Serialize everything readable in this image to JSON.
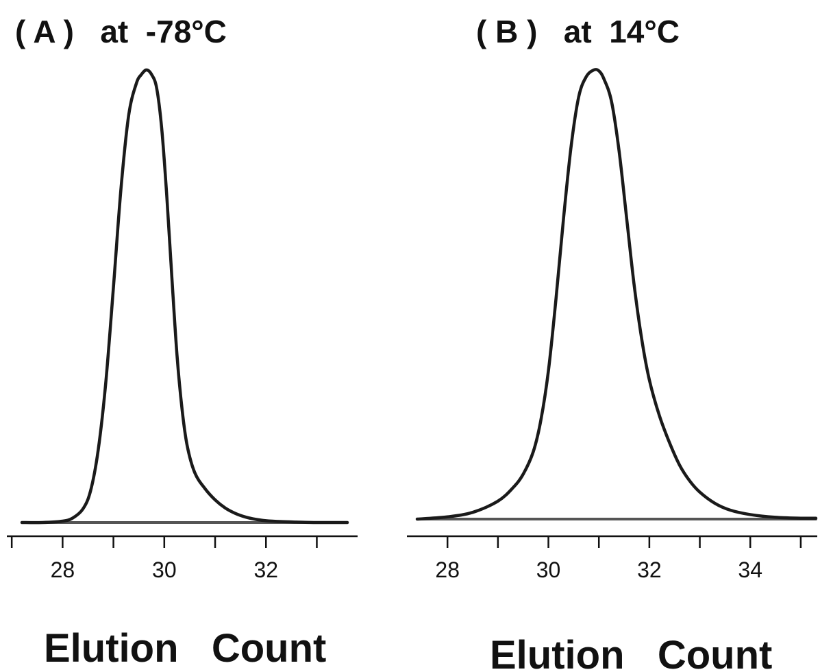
{
  "chart_data": [
    {
      "type": "line",
      "title": "( A )   at  -78°C",
      "xlabel": "Elution   Count",
      "ylabel": "",
      "xlim": [
        27.2,
        33.6
      ],
      "x_ticks": [
        27,
        28,
        29,
        30,
        31,
        32,
        33
      ],
      "x_tick_labels": [
        "28",
        "30",
        "32"
      ],
      "grid": false,
      "legend": "none",
      "line_color": "#1a1a1a",
      "series": [
        {
          "x": [
            27.2,
            27.6,
            28.0,
            28.2,
            28.4,
            28.55,
            28.7,
            28.85,
            29.0,
            29.15,
            29.3,
            29.45,
            29.55,
            29.65,
            29.75,
            29.85,
            29.95,
            30.05,
            30.15,
            30.25,
            30.35,
            30.45,
            30.6,
            30.8,
            31.0,
            31.2,
            31.4,
            31.6,
            31.8,
            32.0,
            32.3,
            32.6,
            33.0,
            33.4,
            33.6
          ],
          "y": [
            0.0,
            0.0,
            0.003,
            0.01,
            0.03,
            0.07,
            0.16,
            0.31,
            0.52,
            0.74,
            0.9,
            0.97,
            0.99,
            1.0,
            0.99,
            0.96,
            0.87,
            0.72,
            0.54,
            0.37,
            0.25,
            0.17,
            0.11,
            0.075,
            0.05,
            0.032,
            0.02,
            0.012,
            0.007,
            0.004,
            0.002,
            0.001,
            0.0,
            0.0,
            0.0
          ]
        }
      ]
    },
    {
      "type": "line",
      "title": "( B )   at  14°C",
      "xlabel": "Elution   Count",
      "ylabel": "",
      "xlim": [
        27.4,
        35.3
      ],
      "x_ticks": [
        28,
        29,
        30,
        31,
        32,
        33,
        34,
        35
      ],
      "x_tick_labels": [
        "28",
        "30",
        "32",
        "34"
      ],
      "grid": false,
      "legend": "none",
      "line_color": "#1a1a1a",
      "series": [
        {
          "x": [
            27.4,
            28.0,
            28.5,
            29.0,
            29.3,
            29.5,
            29.7,
            29.85,
            30.0,
            30.15,
            30.3,
            30.45,
            30.6,
            30.75,
            30.9,
            31.0,
            31.1,
            31.25,
            31.4,
            31.55,
            31.7,
            31.85,
            32.0,
            32.2,
            32.4,
            32.6,
            32.8,
            33.0,
            33.3,
            33.6,
            34.0,
            34.5,
            35.0,
            35.3
          ],
          "y": [
            0.0,
            0.005,
            0.015,
            0.04,
            0.07,
            0.1,
            0.15,
            0.22,
            0.33,
            0.49,
            0.67,
            0.83,
            0.94,
            0.985,
            1.0,
            0.998,
            0.98,
            0.93,
            0.82,
            0.67,
            0.52,
            0.4,
            0.31,
            0.23,
            0.17,
            0.12,
            0.085,
            0.06,
            0.035,
            0.02,
            0.01,
            0.004,
            0.002,
            0.002
          ]
        }
      ]
    }
  ]
}
